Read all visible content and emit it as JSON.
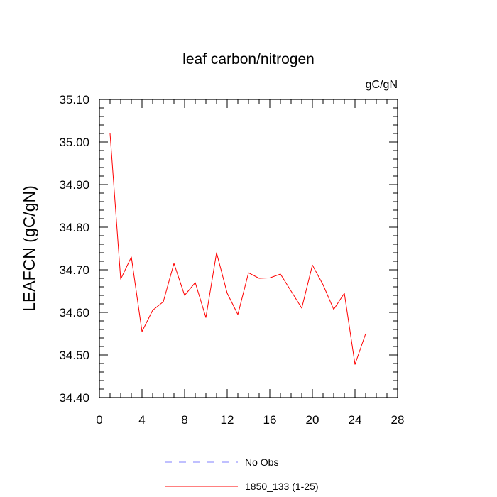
{
  "chart_data": {
    "type": "line",
    "title": "leaf carbon/nitrogen",
    "units_label": "gC/gN",
    "ylabel": "LEAFCN  (gC/gN)",
    "xlabel": "",
    "xlim": [
      0,
      28
    ],
    "ylim": [
      34.4,
      35.1
    ],
    "xticks": [
      0,
      4,
      8,
      12,
      16,
      20,
      24,
      28
    ],
    "yticks": [
      34.4,
      34.5,
      34.6,
      34.7,
      34.8,
      34.9,
      35.0,
      35.1
    ],
    "ytick_labels": [
      "34.40",
      "34.50",
      "34.60",
      "34.70",
      "34.80",
      "34.90",
      "35.00",
      "35.10"
    ],
    "grid": false,
    "legend_position": "bottom",
    "series": [
      {
        "name": "1850_133 (1-25)",
        "color": "#ff0000",
        "style": "solid",
        "x": [
          1,
          2,
          3,
          4,
          5,
          6,
          7,
          8,
          9,
          10,
          11,
          12,
          13,
          14,
          15,
          16,
          17,
          18,
          19,
          20,
          21,
          22,
          23,
          24,
          25
        ],
        "y": [
          35.02,
          34.678,
          34.73,
          34.555,
          34.605,
          34.625,
          34.715,
          34.64,
          34.67,
          34.588,
          34.74,
          34.645,
          34.595,
          34.693,
          34.68,
          34.681,
          34.69,
          34.65,
          34.61,
          34.711,
          34.665,
          34.607,
          34.645,
          34.478,
          34.55
        ]
      }
    ],
    "legend": [
      {
        "label": "No Obs",
        "color": "#8080ff",
        "style": "dashed"
      },
      {
        "label": "1850_133 (1-25)",
        "color": "#ff0000",
        "style": "solid"
      }
    ]
  }
}
